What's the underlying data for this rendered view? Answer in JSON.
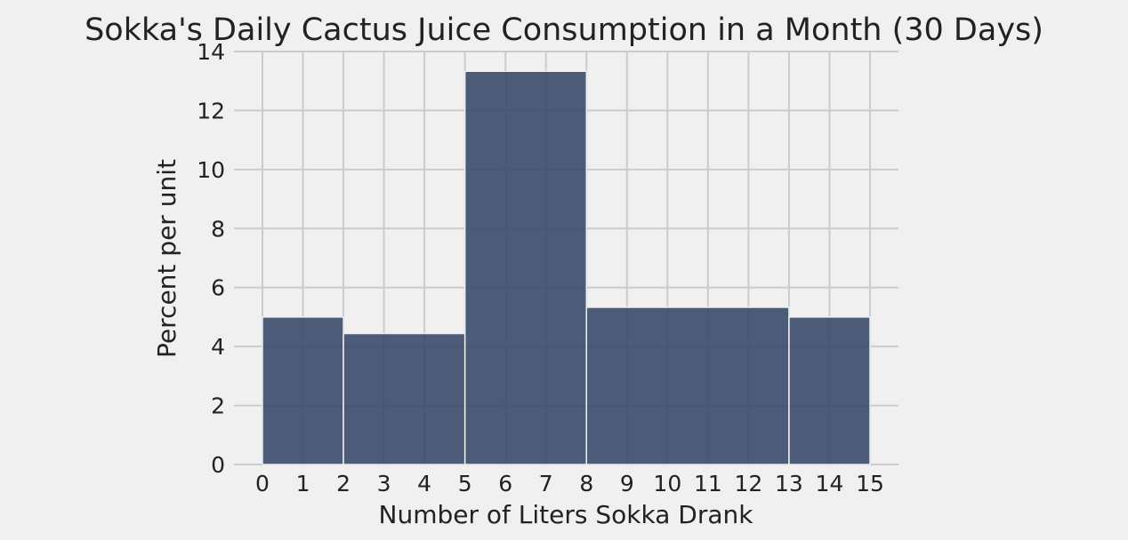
{
  "chart_data": {
    "type": "histogram",
    "title": "Sokka's Daily Cactus Juice Consumption in a Month (30 Days)",
    "xlabel": "Number of Liters Sokka Drank",
    "ylabel": "Percent per unit",
    "xlim": [
      0,
      15
    ],
    "ylim": [
      0,
      14
    ],
    "xticks": [
      "0",
      "1",
      "2",
      "3",
      "4",
      "5",
      "6",
      "7",
      "8",
      "9",
      "10",
      "11",
      "12",
      "13",
      "14",
      "15"
    ],
    "yticks": [
      "0",
      "2",
      "4",
      "6",
      "8",
      "10",
      "12",
      "14"
    ],
    "grid": true,
    "bar_color": "#3a4a6a",
    "bins": [
      {
        "start": 0,
        "end": 2,
        "value": 5.0
      },
      {
        "start": 2,
        "end": 5,
        "value": 4.44
      },
      {
        "start": 5,
        "end": 8,
        "value": 13.33
      },
      {
        "start": 8,
        "end": 13,
        "value": 5.33
      },
      {
        "start": 13,
        "end": 15,
        "value": 5.0
      }
    ]
  }
}
